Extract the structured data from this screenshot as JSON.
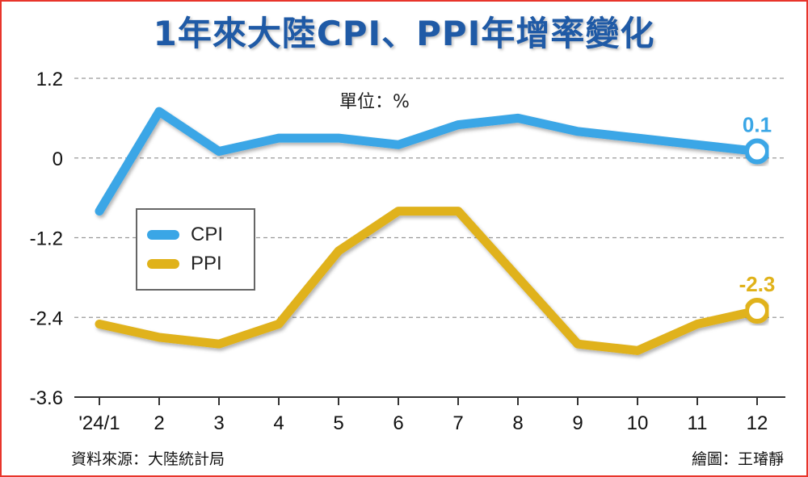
{
  "title": "1年來大陸CPI、PPI年增率變化",
  "unit_label": "單位：%",
  "source": "資料來源：大陸統計局",
  "credit": "繪圖：王璿靜",
  "colors": {
    "cpi": "#3aa6e6",
    "ppi": "#e0b21a",
    "frame": "#e8352b",
    "title": "#1f5aa6"
  },
  "chart_data": {
    "type": "line",
    "categories": [
      "'24/1",
      "2",
      "3",
      "4",
      "5",
      "6",
      "7",
      "8",
      "9",
      "10",
      "11",
      "12"
    ],
    "series": [
      {
        "name": "CPI",
        "values": [
          -0.8,
          0.7,
          0.1,
          0.3,
          0.3,
          0.2,
          0.5,
          0.6,
          0.4,
          0.3,
          0.2,
          0.1
        ]
      },
      {
        "name": "PPI",
        "values": [
          -2.5,
          -2.7,
          -2.8,
          -2.5,
          -1.4,
          -0.8,
          -0.8,
          -1.8,
          -2.8,
          -2.9,
          -2.5,
          -2.3
        ]
      }
    ],
    "y_ticks": [
      "1.2",
      "0",
      "-1.2",
      "-2.4",
      "-3.6"
    ],
    "y_tick_values": [
      1.2,
      0,
      -1.2,
      -2.4,
      -3.6
    ],
    "ylim": [
      -3.6,
      1.2
    ],
    "end_labels": {
      "CPI": "0.1",
      "PPI": "-2.3"
    },
    "grid": "horizontal dashed",
    "legend_position": "left-middle"
  }
}
